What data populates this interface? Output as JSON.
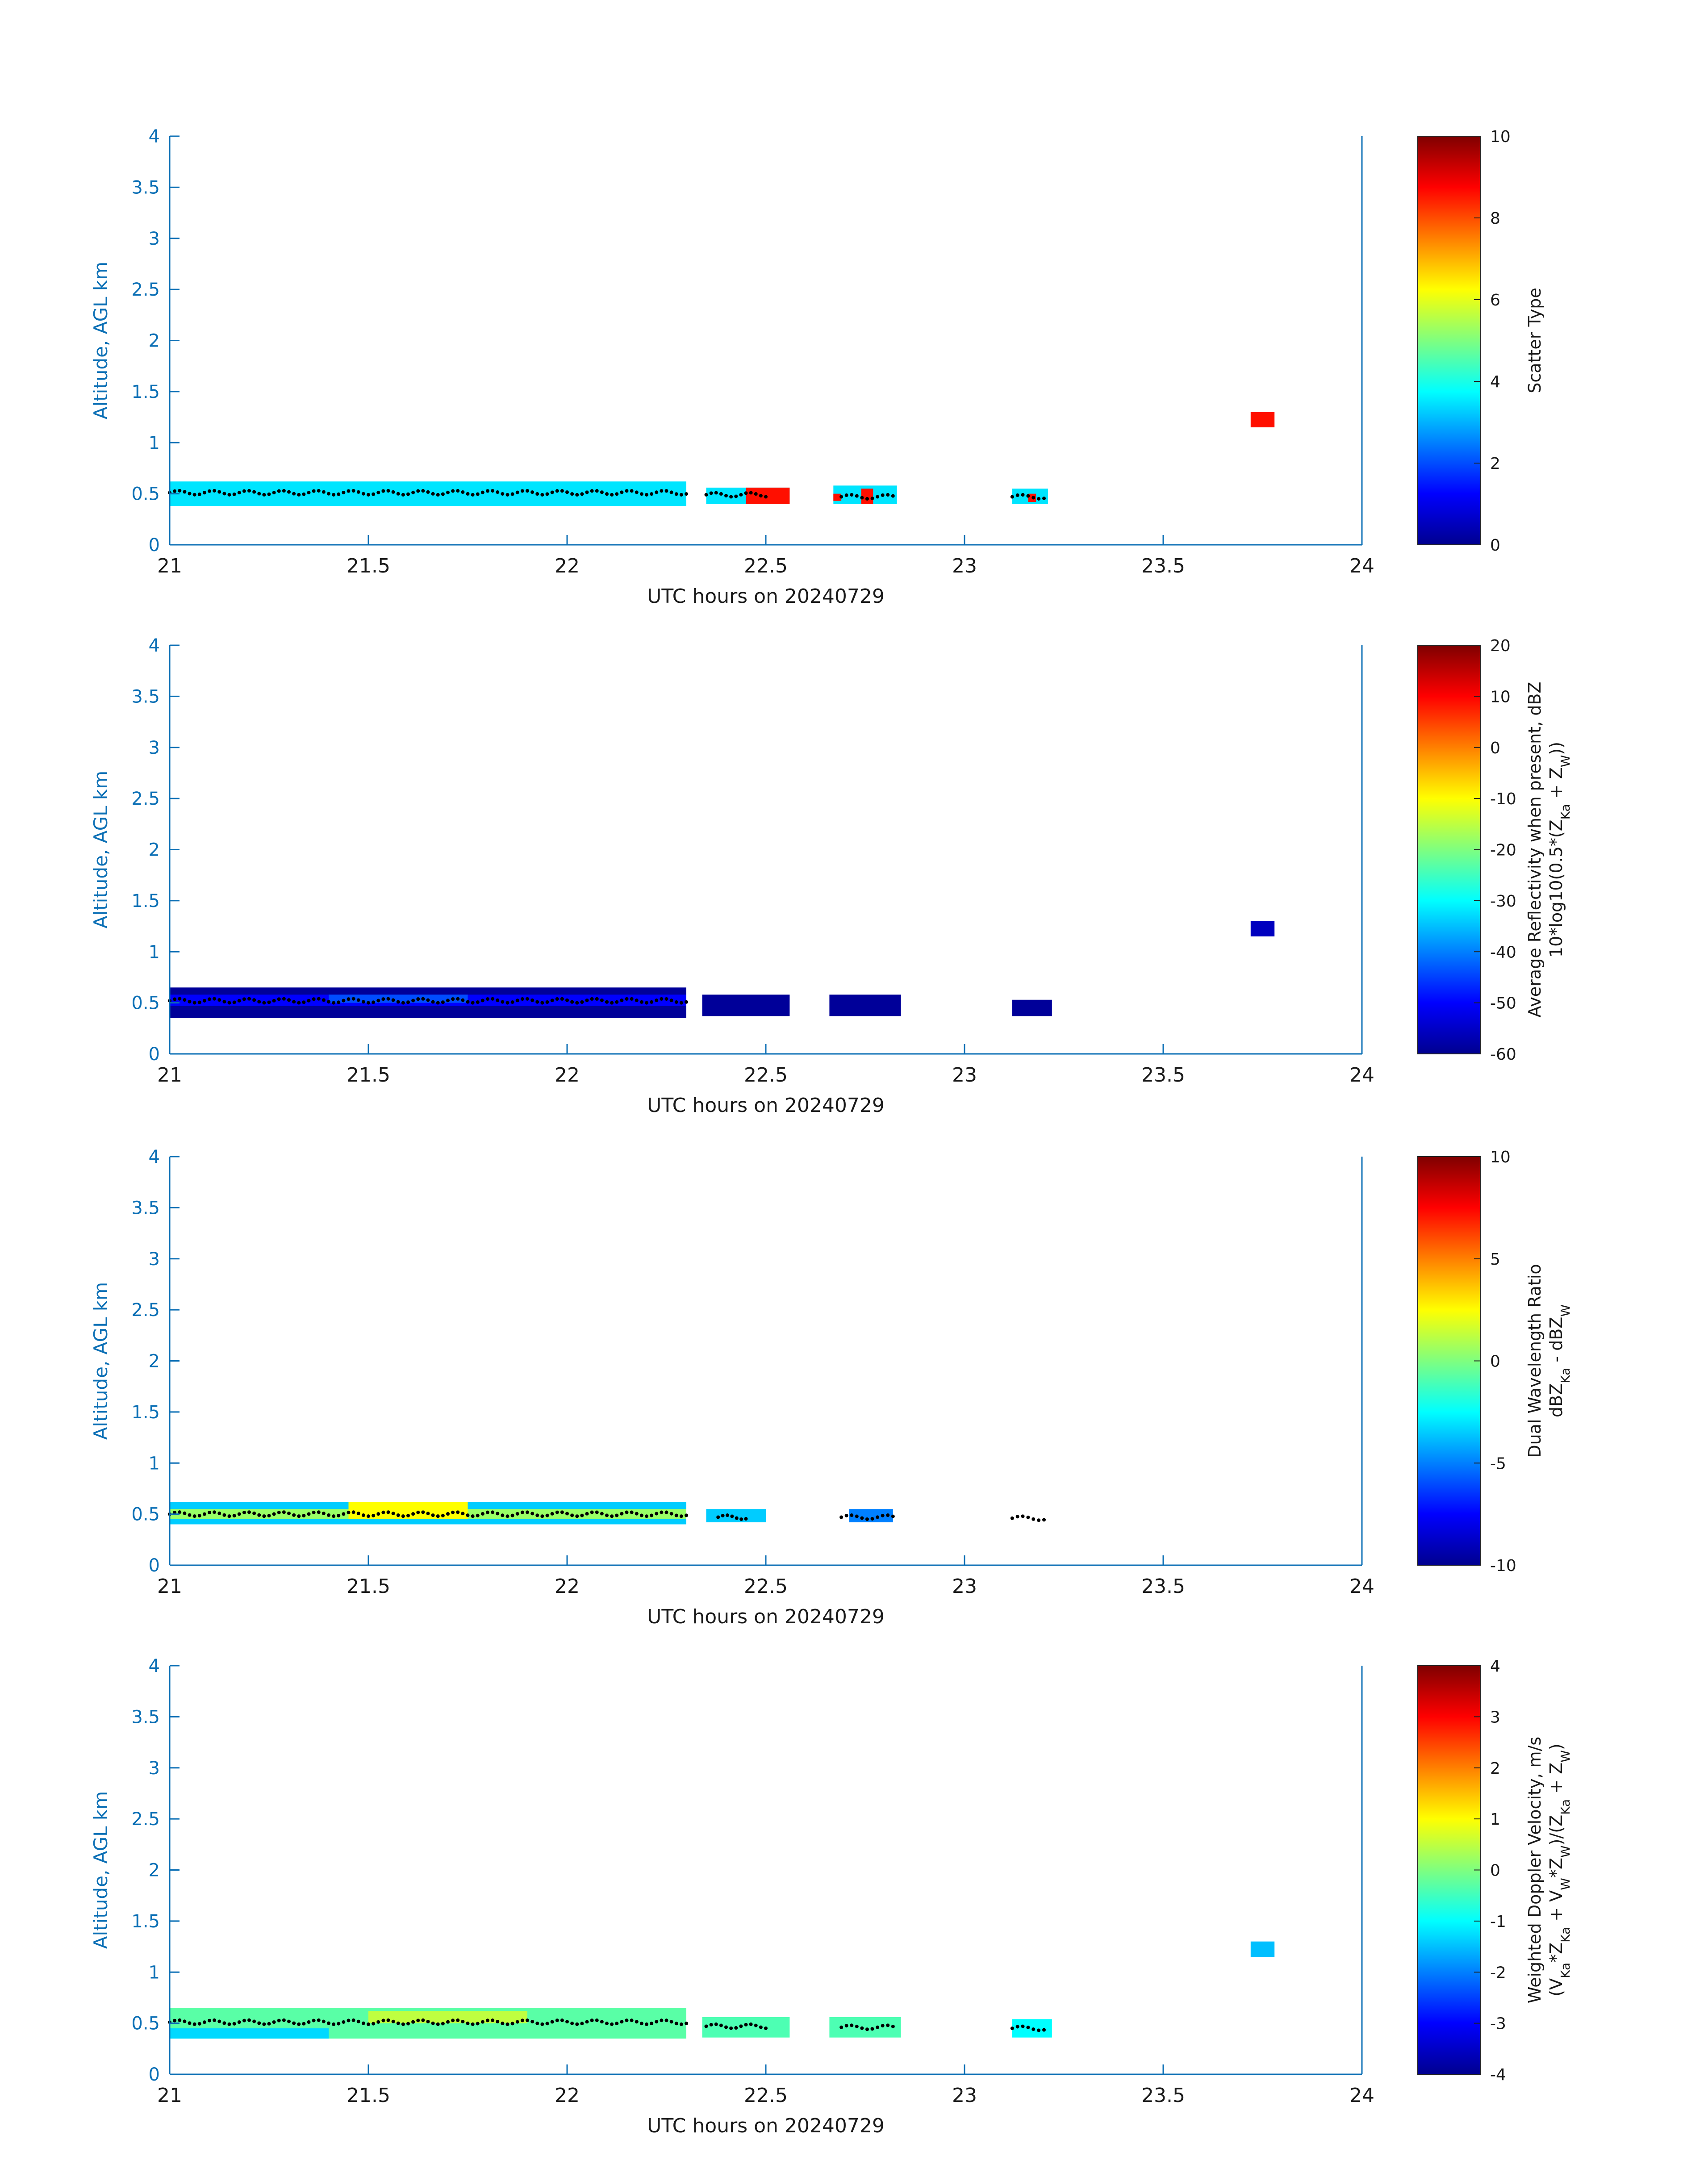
{
  "chart_data": [
    {
      "type": "heatmap",
      "xlabel": "UTC hours on 20240729",
      "ylabel": "Altitude, AGL km",
      "xlim": [
        21,
        24
      ],
      "ylim": [
        0,
        4
      ],
      "xticks": [
        "21",
        "21.5",
        "22",
        "22.5",
        "23",
        "23.5",
        "24"
      ],
      "yticks": [
        "0",
        "0.5",
        "1",
        "1.5",
        "2",
        "2.5",
        "3",
        "3.5",
        "4"
      ],
      "colorbar": {
        "label_lines": [
          "Scatter Type"
        ],
        "ticks": [
          "0",
          "2",
          "4",
          "6",
          "8",
          "10"
        ],
        "range": [
          0,
          10
        ],
        "colormap": "jet"
      },
      "segments": [
        {
          "x0": 21.0,
          "x1": 22.3,
          "y0": 0.38,
          "y1": 0.62,
          "value": 3.5
        },
        {
          "x0": 22.35,
          "x1": 22.56,
          "y0": 0.4,
          "y1": 0.56,
          "value": 3.5
        },
        {
          "x0": 22.45,
          "x1": 22.56,
          "y0": 0.4,
          "y1": 0.56,
          "value": 8.6
        },
        {
          "x0": 22.67,
          "x1": 22.83,
          "y0": 0.4,
          "y1": 0.58,
          "value": 3.5
        },
        {
          "x0": 22.67,
          "x1": 22.69,
          "y0": 0.43,
          "y1": 0.5,
          "value": 8.6
        },
        {
          "x0": 22.74,
          "x1": 22.77,
          "y0": 0.4,
          "y1": 0.55,
          "value": 8.6
        },
        {
          "x0": 23.12,
          "x1": 23.21,
          "y0": 0.4,
          "y1": 0.55,
          "value": 3.5
        },
        {
          "x0": 23.16,
          "x1": 23.18,
          "y0": 0.42,
          "y1": 0.5,
          "value": 8.6
        },
        {
          "x0": 23.72,
          "x1": 23.78,
          "y0": 1.15,
          "y1": 1.3,
          "value": 8.6
        }
      ],
      "dotted_trace": [
        {
          "x0": 21.0,
          "x1": 22.3,
          "y": 0.51
        },
        {
          "x0": 22.35,
          "x1": 22.5,
          "y": 0.49
        },
        {
          "x0": 22.69,
          "x1": 22.82,
          "y": 0.47
        },
        {
          "x0": 23.12,
          "x1": 23.2,
          "y": 0.47
        }
      ]
    },
    {
      "type": "heatmap",
      "xlabel": "UTC hours on 20240729",
      "ylabel": "Altitude, AGL km",
      "xlim": [
        21,
        24
      ],
      "ylim": [
        0,
        4
      ],
      "xticks": [
        "21",
        "21.5",
        "22",
        "22.5",
        "23",
        "23.5",
        "24"
      ],
      "yticks": [
        "0",
        "0.5",
        "1",
        "1.5",
        "2",
        "2.5",
        "3",
        "3.5",
        "4"
      ],
      "colorbar": {
        "label_lines": [
          "Average Reflectivity when present, dBZ",
          "10*log10(0.5*(Z_Ka + Z_W))"
        ],
        "ticks": [
          "-60",
          "-50",
          "-40",
          "-30",
          "-20",
          "-10",
          "0",
          "10",
          "20"
        ],
        "range": [
          -60,
          20
        ],
        "colormap": "jet"
      },
      "segments": [
        {
          "x0": 21.0,
          "x1": 22.3,
          "y0": 0.35,
          "y1": 0.65,
          "value": -58
        },
        {
          "x0": 21.0,
          "x1": 22.3,
          "y0": 0.47,
          "y1": 0.58,
          "value": -50
        },
        {
          "x0": 21.4,
          "x1": 21.75,
          "y0": 0.5,
          "y1": 0.58,
          "value": -44
        },
        {
          "x0": 22.34,
          "x1": 22.56,
          "y0": 0.37,
          "y1": 0.58,
          "value": -58
        },
        {
          "x0": 22.66,
          "x1": 22.84,
          "y0": 0.37,
          "y1": 0.58,
          "value": -58
        },
        {
          "x0": 23.12,
          "x1": 23.22,
          "y0": 0.37,
          "y1": 0.53,
          "value": -58
        },
        {
          "x0": 23.72,
          "x1": 23.78,
          "y0": 1.15,
          "y1": 1.3,
          "value": -55
        }
      ],
      "dotted_trace": [
        {
          "x0": 21.0,
          "x1": 22.3,
          "y": 0.52
        }
      ]
    },
    {
      "type": "heatmap",
      "xlabel": "UTC hours on 20240729",
      "ylabel": "Altitude, AGL km",
      "xlim": [
        21,
        24
      ],
      "ylim": [
        0,
        4
      ],
      "xticks": [
        "21",
        "21.5",
        "22",
        "22.5",
        "23",
        "23.5",
        "24"
      ],
      "yticks": [
        "0",
        "0.5",
        "1",
        "1.5",
        "2",
        "2.5",
        "3",
        "3.5",
        "4"
      ],
      "colorbar": {
        "label_lines": [
          "Dual Wavelength Ratio",
          "dBZ_Ka - dBZ_W"
        ],
        "ticks": [
          "-10",
          "-5",
          "0",
          "5",
          "10"
        ],
        "range": [
          -10,
          10
        ],
        "colormap": "jet"
      },
      "segments": [
        {
          "x0": 21.0,
          "x1": 22.3,
          "y0": 0.4,
          "y1": 0.62,
          "value": -3.5
        },
        {
          "x0": 21.0,
          "x1": 22.3,
          "y0": 0.45,
          "y1": 0.55,
          "value": 0.5
        },
        {
          "x0": 21.45,
          "x1": 21.75,
          "y0": 0.45,
          "y1": 0.62,
          "value": 2.5
        },
        {
          "x0": 22.35,
          "x1": 22.5,
          "y0": 0.42,
          "y1": 0.55,
          "value": -3.5
        },
        {
          "x0": 22.71,
          "x1": 22.82,
          "y0": 0.42,
          "y1": 0.55,
          "value": -5
        }
      ],
      "dotted_trace": [
        {
          "x0": 21.0,
          "x1": 22.3,
          "y": 0.5
        },
        {
          "x0": 22.38,
          "x1": 22.45,
          "y": 0.47
        },
        {
          "x0": 22.69,
          "x1": 22.82,
          "y": 0.47
        },
        {
          "x0": 23.12,
          "x1": 23.2,
          "y": 0.46
        }
      ]
    },
    {
      "type": "heatmap",
      "xlabel": "UTC hours on 20240729",
      "ylabel": "Altitude, AGL km",
      "xlim": [
        21,
        24
      ],
      "ylim": [
        0,
        4
      ],
      "xticks": [
        "21",
        "21.5",
        "22",
        "22.5",
        "23",
        "23.5",
        "24"
      ],
      "yticks": [
        "0",
        "0.5",
        "1",
        "1.5",
        "2",
        "2.5",
        "3",
        "3.5",
        "4"
      ],
      "colorbar": {
        "label_lines": [
          "Weighted Doppler Velocity, m/s",
          "(V_Ka*Z_Ka + V_W*Z_W)/(Z_Ka + Z_W)"
        ],
        "ticks": [
          "-4",
          "-3",
          "-2",
          "-1",
          "0",
          "1",
          "2",
          "3",
          "4"
        ],
        "range": [
          -4,
          4
        ],
        "colormap": "jet"
      },
      "segments": [
        {
          "x0": 21.0,
          "x1": 22.3,
          "y0": 0.35,
          "y1": 0.65,
          "value": -0.3
        },
        {
          "x0": 21.0,
          "x1": 21.4,
          "y0": 0.35,
          "y1": 0.45,
          "value": -1.3
        },
        {
          "x0": 21.5,
          "x1": 21.9,
          "y0": 0.5,
          "y1": 0.62,
          "value": 0.5
        },
        {
          "x0": 22.34,
          "x1": 22.56,
          "y0": 0.36,
          "y1": 0.56,
          "value": -0.4
        },
        {
          "x0": 22.66,
          "x1": 22.84,
          "y0": 0.36,
          "y1": 0.56,
          "value": -0.4
        },
        {
          "x0": 23.12,
          "x1": 23.22,
          "y0": 0.36,
          "y1": 0.54,
          "value": -1.0
        },
        {
          "x0": 23.72,
          "x1": 23.78,
          "y0": 1.15,
          "y1": 1.3,
          "value": -1.5
        }
      ],
      "dotted_trace": [
        {
          "x0": 21.0,
          "x1": 22.3,
          "y": 0.51
        },
        {
          "x0": 22.35,
          "x1": 22.5,
          "y": 0.47
        },
        {
          "x0": 22.69,
          "x1": 22.82,
          "y": 0.46
        },
        {
          "x0": 23.12,
          "x1": 23.2,
          "y": 0.45
        }
      ]
    }
  ]
}
